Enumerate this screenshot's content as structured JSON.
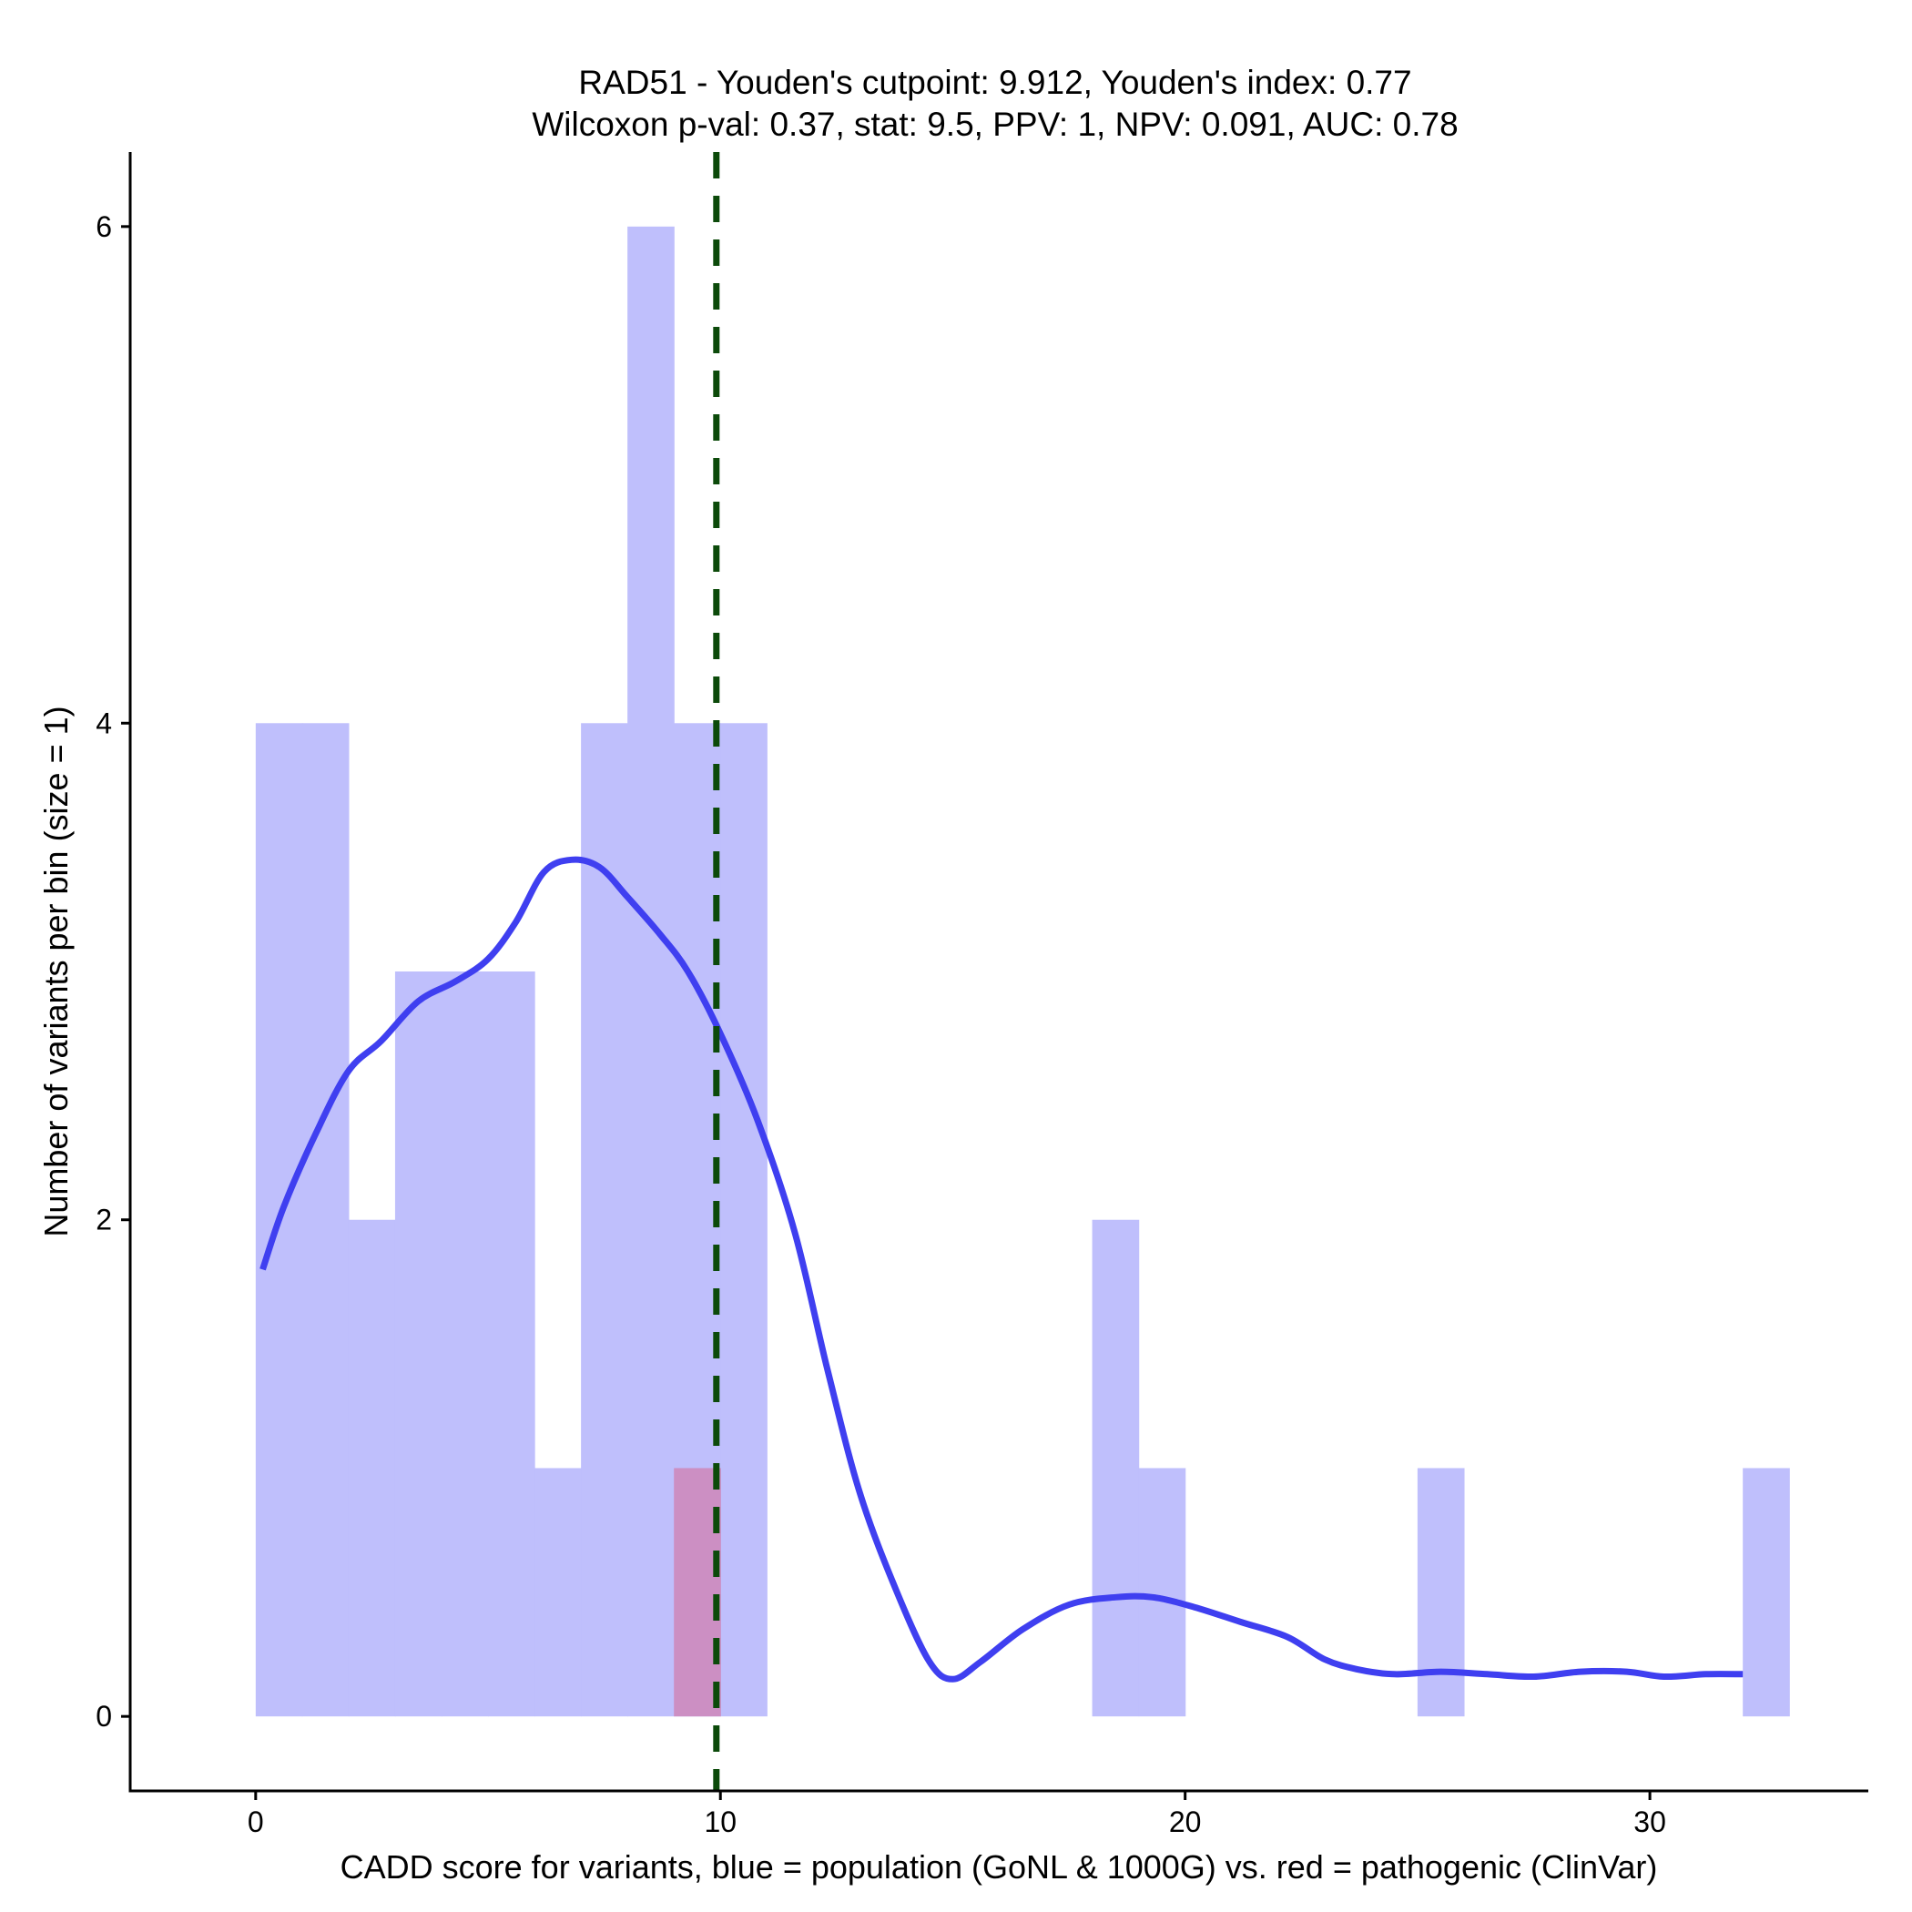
{
  "chart_data": {
    "type": "histogram",
    "title_line1": "RAD51 - Youden's cutpoint: 9.912, Youden's index: 0.77",
    "title_line2": "Wilcoxon p-val: 0.37, stat: 9.5, PPV: 1, NPV: 0.091, AUC: 0.78",
    "xlabel": "CADD score for variants, blue = population (GoNL & 1000G) vs. red = pathogenic (ClinVar)",
    "ylabel": "Number of variants per bin (size = 1)",
    "xlim": [
      -2.7,
      34.7
    ],
    "ylim": [
      -0.3,
      6.3
    ],
    "x_ticks": [
      0,
      10,
      20,
      30
    ],
    "y_ticks": [
      0,
      2,
      4,
      6
    ],
    "bin_width": 1,
    "series": [
      {
        "name": "population (GoNL & 1000G)",
        "color": "#bfbffc",
        "bins": [
          {
            "start": 0,
            "count": 4
          },
          {
            "start": 1,
            "count": 4
          },
          {
            "start": 2,
            "count": 2
          },
          {
            "start": 3,
            "count": 3
          },
          {
            "start": 4,
            "count": 3
          },
          {
            "start": 5,
            "count": 3
          },
          {
            "start": 6,
            "count": 1
          },
          {
            "start": 7,
            "count": 4
          },
          {
            "start": 8,
            "count": 6
          },
          {
            "start": 9,
            "count": 4
          },
          {
            "start": 10,
            "count": 4
          },
          {
            "start": 18,
            "count": 2
          },
          {
            "start": 19,
            "count": 1
          },
          {
            "start": 25,
            "count": 1
          },
          {
            "start": 32,
            "count": 1
          }
        ]
      },
      {
        "name": "pathogenic (ClinVar)",
        "color": "#cc8fc3",
        "bins": [
          {
            "start": 9,
            "count": 1
          }
        ]
      }
    ],
    "density_curve": {
      "name": "population density",
      "color": "#3f3ff0",
      "x": [
        0.15,
        0.6,
        1.3,
        2.0,
        2.7,
        3.5,
        4.3,
        5.0,
        5.6,
        6.2,
        6.8,
        7.4,
        8.0,
        8.7,
        9.3,
        10.0,
        10.8,
        11.6,
        12.3,
        13.0,
        13.8,
        14.5,
        15.0,
        15.6,
        16.5,
        17.5,
        18.5,
        19.3,
        20.2,
        21.2,
        22.2,
        23.0,
        23.7,
        24.5,
        25.5,
        26.5,
        27.5,
        28.5,
        29.5,
        30.3,
        31.2,
        32.0
      ],
      "y": [
        1.8,
        2.05,
        2.35,
        2.6,
        2.72,
        2.88,
        2.96,
        3.05,
        3.2,
        3.4,
        3.45,
        3.42,
        3.3,
        3.15,
        3.0,
        2.75,
        2.4,
        1.95,
        1.4,
        0.9,
        0.5,
        0.22,
        0.15,
        0.22,
        0.35,
        0.45,
        0.48,
        0.48,
        0.44,
        0.38,
        0.32,
        0.23,
        0.19,
        0.17,
        0.18,
        0.17,
        0.16,
        0.18,
        0.18,
        0.16,
        0.17,
        0.17
      ]
    },
    "cutpoint": {
      "label": "Youden's cutpoint",
      "x": 9.912,
      "color": "#0c4a0a"
    }
  }
}
